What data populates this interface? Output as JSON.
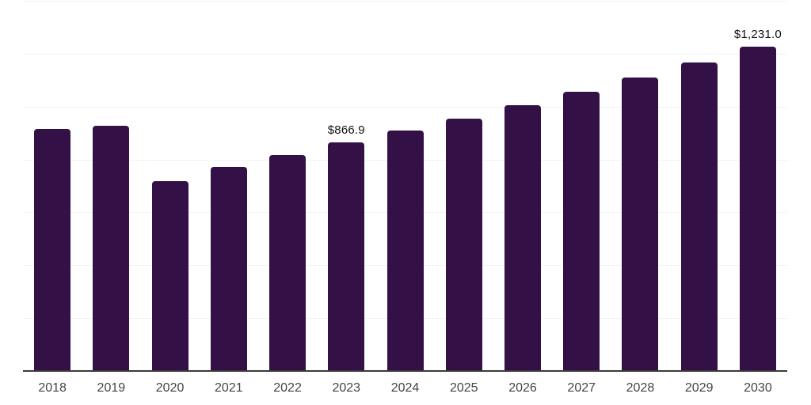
{
  "chart_data": {
    "type": "bar",
    "title": "",
    "xlabel": "",
    "ylabel": "",
    "categories": [
      "2018",
      "2019",
      "2020",
      "2021",
      "2022",
      "2023",
      "2024",
      "2025",
      "2026",
      "2027",
      "2028",
      "2029",
      "2030"
    ],
    "values": [
      918,
      930,
      721,
      775,
      820,
      866.9,
      912,
      958,
      1007,
      1059,
      1112,
      1170,
      1231
    ],
    "data_labels": {
      "2023": "$866.9",
      "2030": "$1,231.0"
    },
    "ylim": [
      0,
      1400
    ],
    "gridline_step": 200,
    "grid": true,
    "legend": false,
    "colors": {
      "bar": "#331147",
      "gridline": "#f2f2f2",
      "axis": "#3a3a3a",
      "tick_label": "#444444",
      "data_label": "#111111"
    }
  }
}
